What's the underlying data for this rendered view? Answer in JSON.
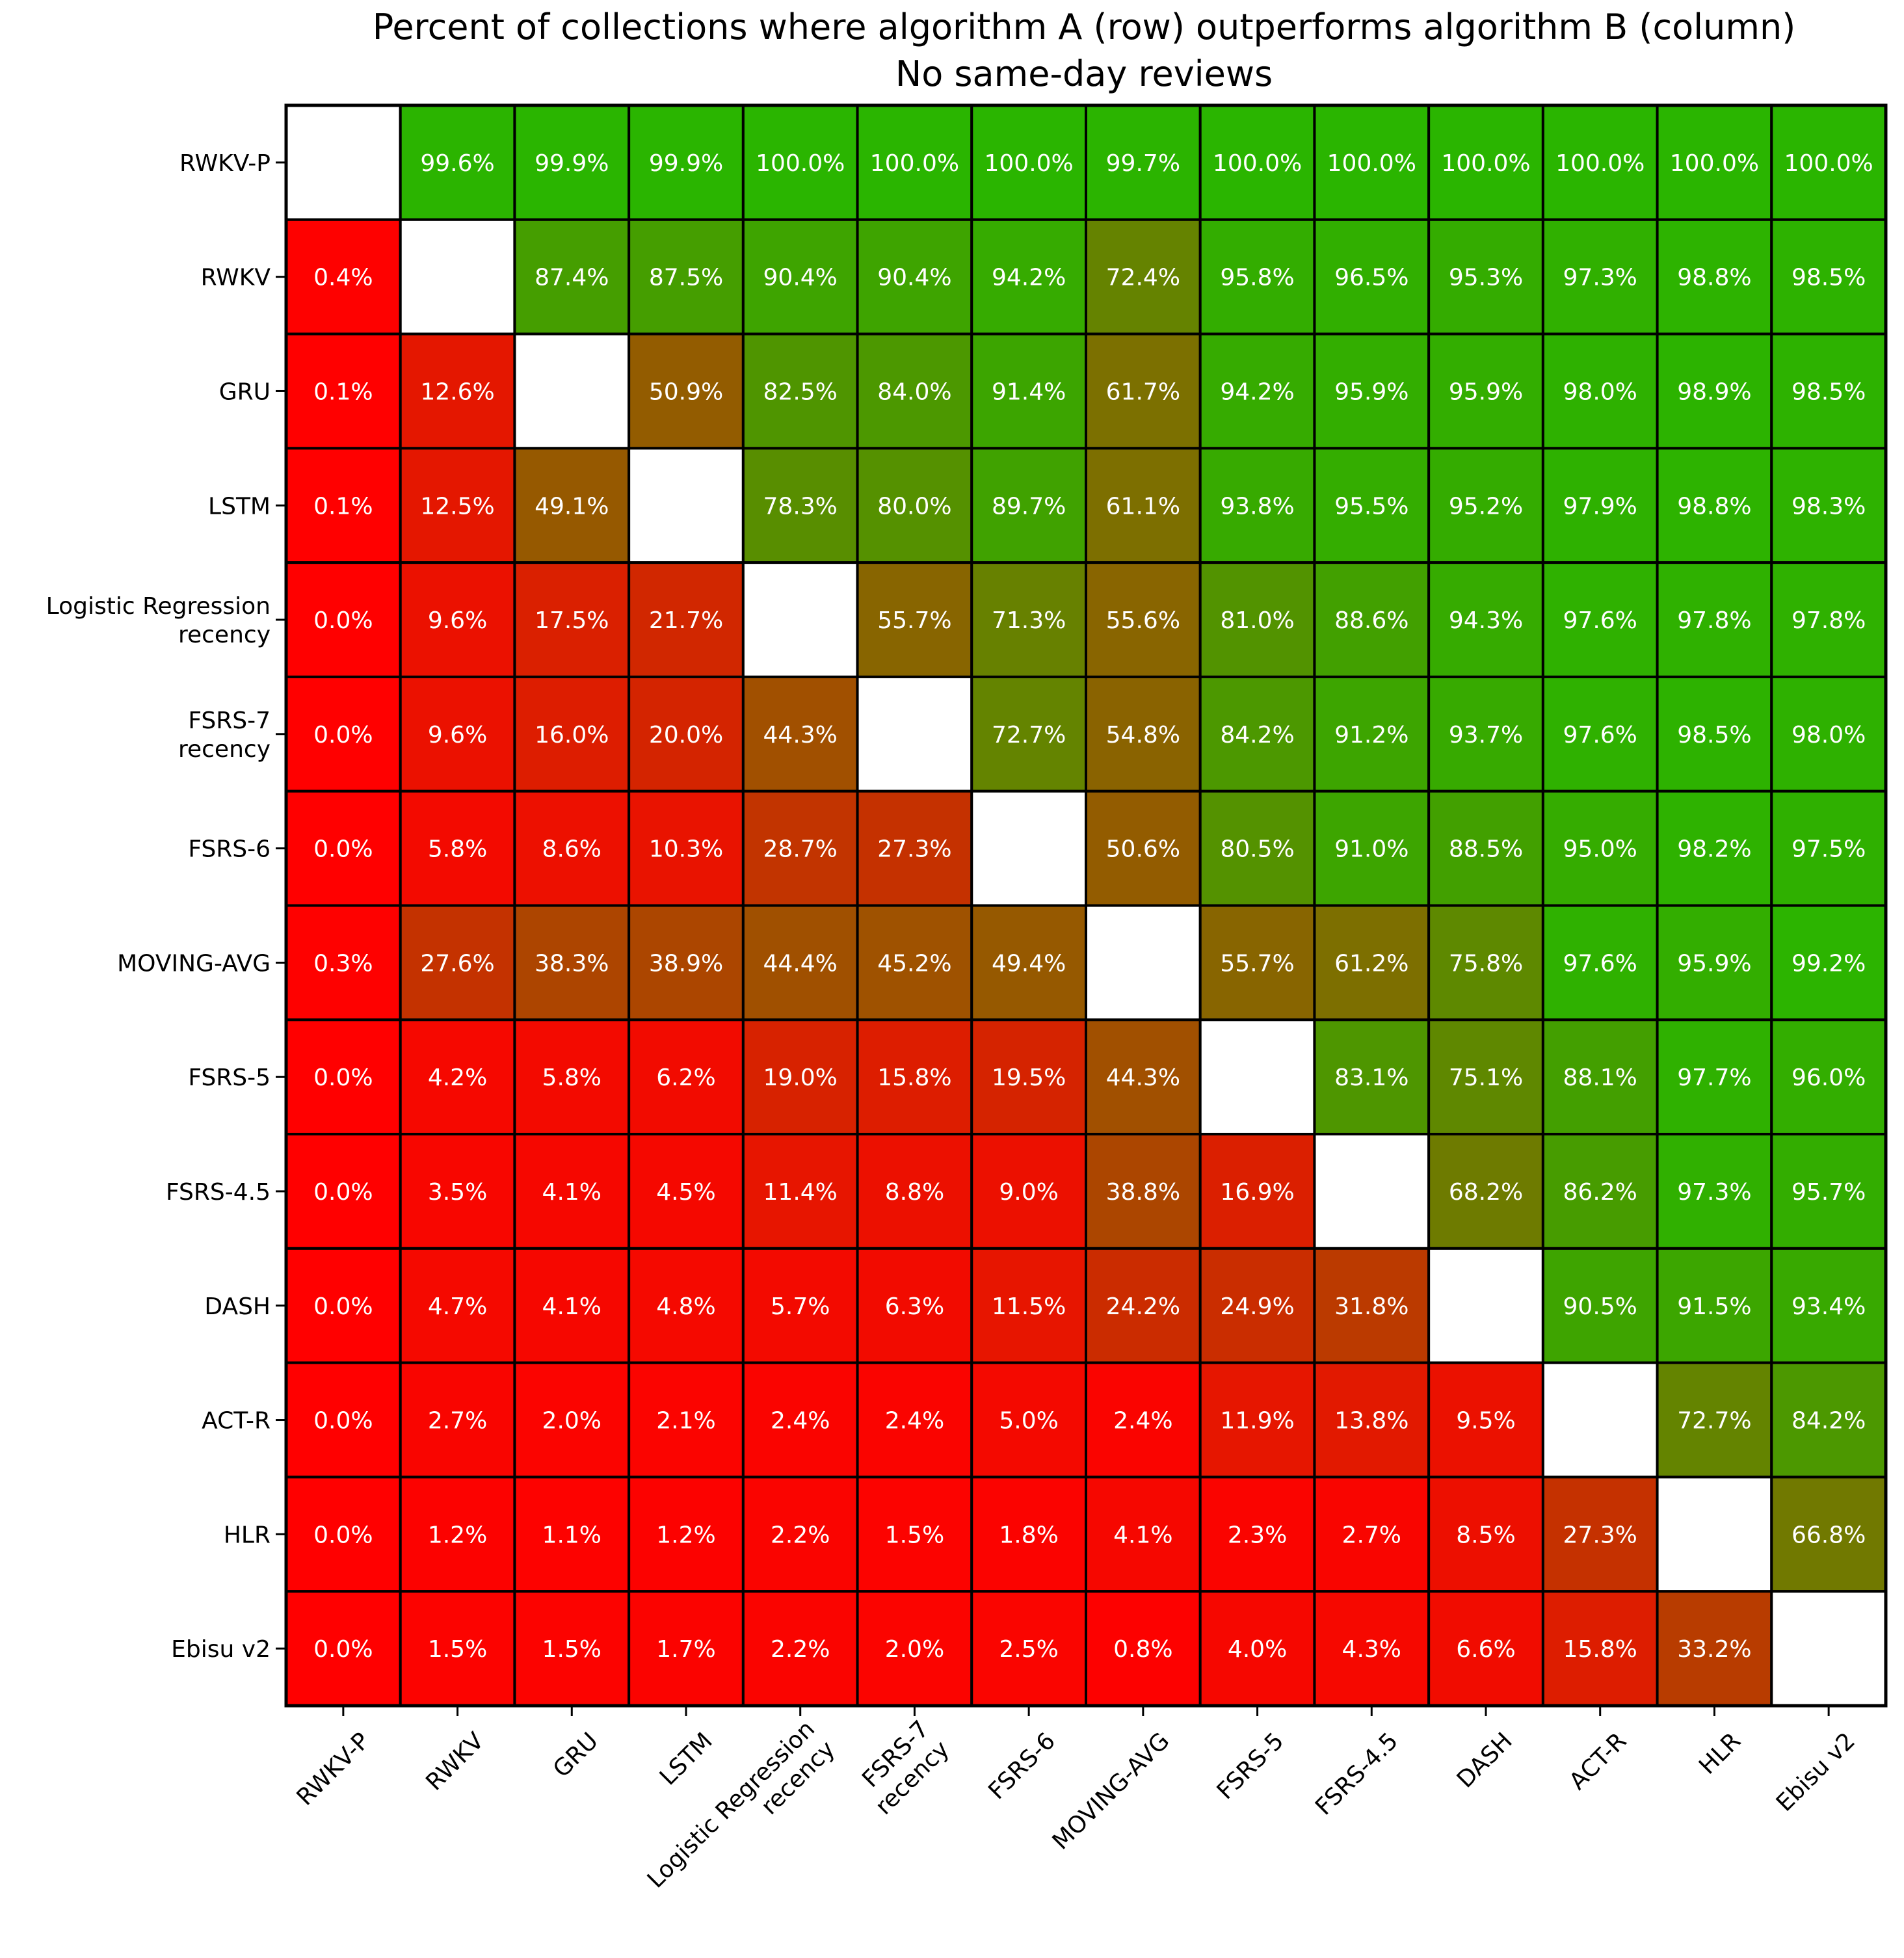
{
  "chart_data": {
    "type": "heatmap",
    "title": "Percent of collections where algorithm A (row) outperforms algorithm B (column)",
    "subtitle": "No same-day reviews",
    "row_labels": [
      [
        "RWKV-P"
      ],
      [
        "RWKV"
      ],
      [
        "GRU"
      ],
      [
        "LSTM"
      ],
      [
        "Logistic Regression",
        "recency"
      ],
      [
        "FSRS-7",
        "recency"
      ],
      [
        "FSRS-6"
      ],
      [
        "MOVING-AVG"
      ],
      [
        "FSRS-5"
      ],
      [
        "FSRS-4.5"
      ],
      [
        "DASH"
      ],
      [
        "ACT-R"
      ],
      [
        "HLR"
      ],
      [
        "Ebisu v2"
      ]
    ],
    "col_labels": [
      [
        "RWKV-P"
      ],
      [
        "RWKV"
      ],
      [
        "GRU"
      ],
      [
        "LSTM"
      ],
      [
        "Logistic Regression",
        "recency"
      ],
      [
        "FSRS-7",
        "recency"
      ],
      [
        "FSRS-6"
      ],
      [
        "MOVING-AVG"
      ],
      [
        "FSRS-5"
      ],
      [
        "FSRS-4.5"
      ],
      [
        "DASH"
      ],
      [
        "ACT-R"
      ],
      [
        "HLR"
      ],
      [
        "Ebisu v2"
      ]
    ],
    "value_unit": "%",
    "value_range": [
      0,
      100
    ],
    "colormap": {
      "low": "#ff0000",
      "high": "#2ab500"
    },
    "diagonal_color": "#ffffff",
    "values": [
      [
        null,
        99.6,
        99.9,
        99.9,
        100.0,
        100.0,
        100.0,
        99.7,
        100.0,
        100.0,
        100.0,
        100.0,
        100.0,
        100.0
      ],
      [
        0.4,
        null,
        87.4,
        87.5,
        90.4,
        90.4,
        94.2,
        72.4,
        95.8,
        96.5,
        95.3,
        97.3,
        98.8,
        98.5
      ],
      [
        0.1,
        12.6,
        null,
        50.9,
        82.5,
        84.0,
        91.4,
        61.7,
        94.2,
        95.9,
        95.9,
        98.0,
        98.9,
        98.5
      ],
      [
        0.1,
        12.5,
        49.1,
        null,
        78.3,
        80.0,
        89.7,
        61.1,
        93.8,
        95.5,
        95.2,
        97.9,
        98.8,
        98.3
      ],
      [
        0.0,
        9.6,
        17.5,
        21.7,
        null,
        55.7,
        71.3,
        55.6,
        81.0,
        88.6,
        94.3,
        97.6,
        97.8,
        97.8
      ],
      [
        0.0,
        9.6,
        16.0,
        20.0,
        44.3,
        null,
        72.7,
        54.8,
        84.2,
        91.2,
        93.7,
        97.6,
        98.5,
        98.0
      ],
      [
        0.0,
        5.8,
        8.6,
        10.3,
        28.7,
        27.3,
        null,
        50.6,
        80.5,
        91.0,
        88.5,
        95.0,
        98.2,
        97.5
      ],
      [
        0.3,
        27.6,
        38.3,
        38.9,
        44.4,
        45.2,
        49.4,
        null,
        55.7,
        61.2,
        75.8,
        97.6,
        95.9,
        99.2
      ],
      [
        0.0,
        4.2,
        5.8,
        6.2,
        19.0,
        15.8,
        19.5,
        44.3,
        null,
        83.1,
        75.1,
        88.1,
        97.7,
        96.0
      ],
      [
        0.0,
        3.5,
        4.1,
        4.5,
        11.4,
        8.8,
        9.0,
        38.8,
        16.9,
        null,
        68.2,
        86.2,
        97.3,
        95.7
      ],
      [
        0.0,
        4.7,
        4.1,
        4.8,
        5.7,
        6.3,
        11.5,
        24.2,
        24.9,
        31.8,
        null,
        90.5,
        91.5,
        93.4
      ],
      [
        0.0,
        2.7,
        2.0,
        2.1,
        2.4,
        2.4,
        5.0,
        2.4,
        11.9,
        13.8,
        9.5,
        null,
        72.7,
        84.2
      ],
      [
        0.0,
        1.2,
        1.1,
        1.2,
        2.2,
        1.5,
        1.8,
        4.1,
        2.3,
        2.7,
        8.5,
        27.3,
        null,
        66.8
      ],
      [
        0.0,
        1.5,
        1.5,
        1.7,
        2.2,
        2.0,
        2.5,
        0.8,
        4.0,
        4.3,
        6.6,
        15.8,
        33.2,
        null
      ]
    ]
  }
}
